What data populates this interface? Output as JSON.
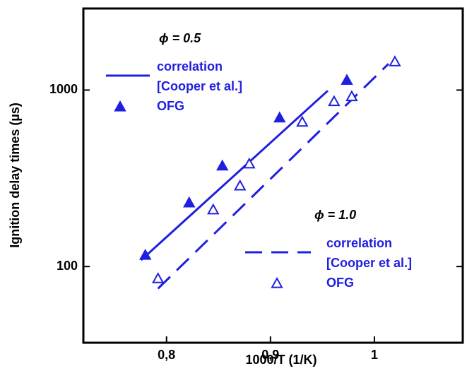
{
  "chart_data": {
    "type": "scatter",
    "x_label": "1000/T (1/K)",
    "y_label": "Ignition delay times (µs)",
    "xlim": [
      0.72,
      1.085
    ],
    "xticks": [
      {
        "value": 0.8,
        "label": "0,8"
      },
      {
        "value": 0.9,
        "label": "0,9"
      },
      1
    ],
    "ylim": [
      37,
      2900
    ],
    "yticks": [
      100,
      1000
    ],
    "y_log": true,
    "legend_titles": [
      "ϕ = 0.5",
      "ϕ = 1.0"
    ],
    "series": [
      {
        "name": [
          "correlation",
          "[Cooper et al.]"
        ],
        "group": 0,
        "style": "solid",
        "color": "#1f1fe0",
        "x": [
          0.7755,
          0.9551
        ],
        "values": [
          108.7,
          991
        ]
      },
      {
        "name": [
          "OFG"
        ],
        "group": 0,
        "style": "filled-triangle",
        "color": "#1f1fe0",
        "x": [
          0.7796,
          0.8218,
          0.8537,
          0.9088,
          0.9735
        ],
        "values": [
          116,
          230,
          372,
          697,
          1138
        ]
      },
      {
        "name": [
          "correlation",
          "[Cooper et al.]"
        ],
        "group": 1,
        "style": "dashed",
        "color": "#1f1fe0",
        "x": [
          0.7918,
          1.0136
        ],
        "values": [
          75,
          1409
        ]
      },
      {
        "name": [
          "OFG"
        ],
        "group": 1,
        "style": "open-triangle",
        "color": "#1f1fe0",
        "x": [
          0.7918,
          0.8449,
          0.8707,
          0.8796,
          0.9306,
          0.9612,
          0.9782,
          1.0197
        ],
        "values": [
          85.5,
          210,
          287,
          382,
          659,
          862,
          920,
          1448
        ]
      }
    ]
  }
}
